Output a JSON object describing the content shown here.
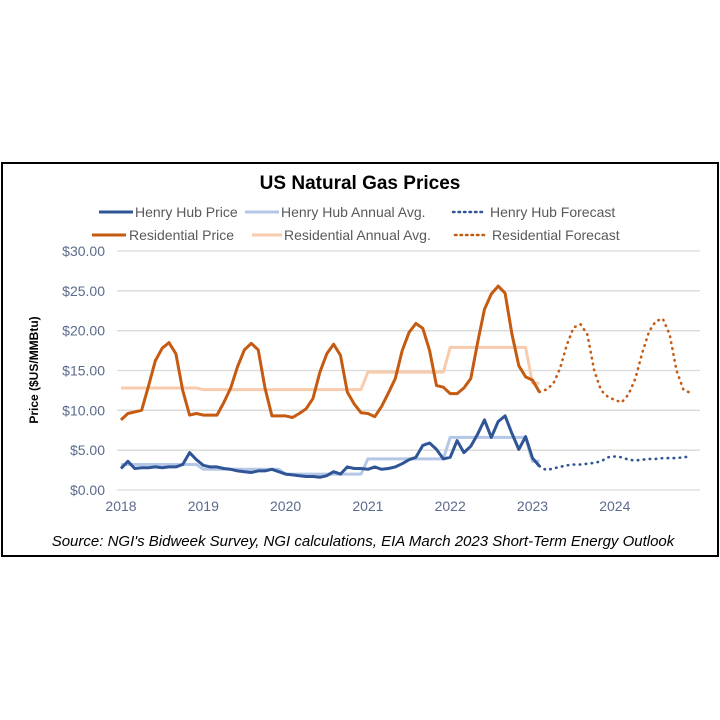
{
  "chart_data": {
    "type": "line",
    "title": "US Natural Gas Prices",
    "ylabel": "Price ($US/MMBtu)",
    "xlabel": "",
    "ylim": [
      0,
      30
    ],
    "xlim": [
      "2018-01",
      "2024-12"
    ],
    "grid": true,
    "legend_position": "top",
    "y_ticks": [
      "$0.00",
      "$5.00",
      "$10.00",
      "$15.00",
      "$20.00",
      "$25.00",
      "$30.00"
    ],
    "y_tick_values": [
      0,
      5,
      10,
      15,
      20,
      25,
      30
    ],
    "x_ticks": [
      "2018",
      "2019",
      "2020",
      "2021",
      "2022",
      "2023",
      "2024"
    ],
    "source": "Source: NGI's Bidweek Survey, NGI calculations, EIA March 2023 Short-Term Energy Outlook",
    "series": [
      {
        "name": "Henry Hub Price",
        "color": "#2F5597",
        "style": "solid",
        "start": "2018-01",
        "values": [
          2.7,
          3.6,
          2.7,
          2.8,
          2.8,
          2.9,
          2.8,
          2.9,
          2.9,
          3.2,
          4.7,
          3.8,
          3.1,
          2.9,
          2.9,
          2.7,
          2.6,
          2.4,
          2.3,
          2.2,
          2.4,
          2.4,
          2.6,
          2.3,
          2.0,
          1.9,
          1.8,
          1.7,
          1.7,
          1.6,
          1.8,
          2.3,
          2.0,
          2.9,
          2.7,
          2.7,
          2.6,
          2.9,
          2.6,
          2.7,
          2.9,
          3.3,
          3.8,
          4.1,
          5.6,
          5.9,
          5.1,
          3.9,
          4.1,
          6.2,
          4.7,
          5.5,
          7.0,
          8.8,
          6.6,
          8.6,
          9.3,
          7.1,
          5.1,
          6.7,
          4.0,
          3.0
        ]
      },
      {
        "name": "Henry Hub Annual Avg.",
        "color": "#B4C7E7",
        "style": "solid",
        "annual": true,
        "years": [
          2018,
          2019,
          2020,
          2021,
          2022,
          2023
        ],
        "values": [
          3.2,
          2.6,
          2.0,
          3.9,
          6.6,
          3.6
        ],
        "months_2023": 2
      },
      {
        "name": "Henry Hub Forecast",
        "color": "#2F5597",
        "style": "dotted",
        "start": "2023-02",
        "values": [
          3.0,
          2.5,
          2.7,
          2.9,
          3.1,
          3.2,
          3.2,
          3.3,
          3.4,
          3.6,
          4.1,
          4.2,
          4.1,
          3.8,
          3.7,
          3.8,
          3.9,
          3.9,
          4.0,
          4.0,
          4.0,
          4.1,
          4.2
        ]
      },
      {
        "name": "Residential Price",
        "color": "#C55A11",
        "style": "solid",
        "start": "2018-01",
        "values": [
          8.8,
          9.6,
          9.8,
          10.0,
          13.0,
          16.2,
          17.8,
          18.5,
          17.1,
          12.5,
          9.4,
          9.6,
          9.4,
          9.4,
          9.4,
          11.0,
          12.8,
          15.5,
          17.6,
          18.4,
          17.6,
          12.8,
          9.3,
          9.3,
          9.3,
          9.1,
          9.6,
          10.2,
          11.5,
          14.8,
          17.1,
          18.3,
          16.9,
          12.3,
          10.8,
          9.7,
          9.6,
          9.2,
          10.5,
          12.2,
          14.0,
          17.5,
          19.8,
          20.9,
          20.3,
          17.5,
          13.1,
          12.9,
          12.1,
          12.1,
          12.8,
          14.0,
          18.5,
          22.7,
          24.6,
          25.6,
          24.7,
          19.6,
          15.6,
          14.2,
          13.8,
          12.3
        ]
      },
      {
        "name": "Residential Annual Avg.",
        "color": "#F8CBAD",
        "style": "solid",
        "annual": true,
        "years": [
          2018,
          2019,
          2020,
          2021,
          2022,
          2023
        ],
        "values": [
          12.8,
          12.6,
          12.6,
          14.8,
          17.9,
          13.4
        ],
        "months_2023": 2
      },
      {
        "name": "Residential Forecast",
        "color": "#C55A11",
        "style": "dotted",
        "start": "2023-02",
        "values": [
          12.3,
          12.6,
          13.3,
          15.2,
          18.2,
          20.4,
          20.8,
          19.5,
          15.0,
          12.5,
          11.7,
          11.3,
          11.0,
          12.0,
          14.0,
          17.2,
          19.9,
          21.2,
          21.5,
          19.5,
          15.0,
          12.6,
          12.2
        ]
      }
    ]
  }
}
